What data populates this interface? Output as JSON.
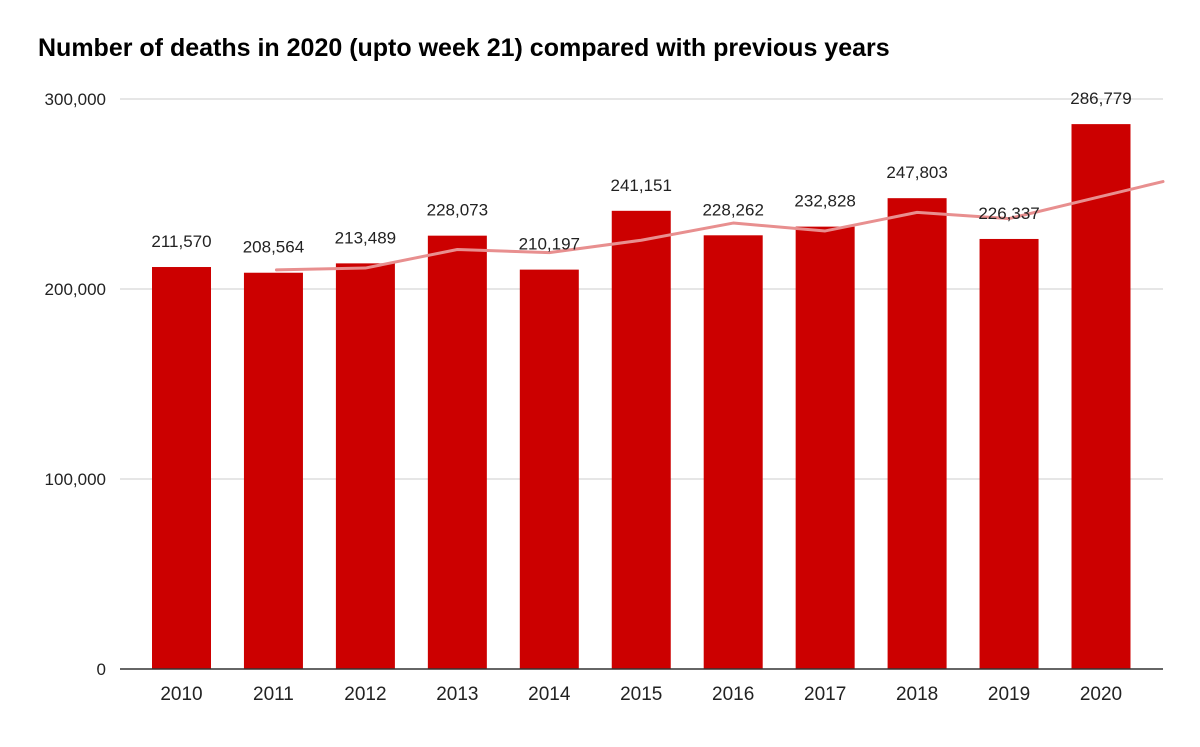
{
  "chart_data": {
    "type": "bar",
    "title": "Number of deaths in 2020 (upto week 21) compared with previous years",
    "categories": [
      "2010",
      "2011",
      "2012",
      "2013",
      "2014",
      "2015",
      "2016",
      "2017",
      "2018",
      "2019",
      "2020"
    ],
    "series": [
      {
        "values": [
          211570,
          208564,
          213489,
          228073,
          210197,
          241151,
          228262,
          232828,
          247803,
          226337,
          286779
        ]
      }
    ],
    "data_labels": [
      "211,570",
      "208,564",
      "213,489",
      "228,073",
      "210,197",
      "241,151",
      "228,262",
      "232,828",
      "247,803",
      "226,337",
      "286,779"
    ],
    "trendline": {
      "type": "line",
      "values": [
        210067,
        211027,
        220781,
        219135,
        225674,
        234707,
        230545,
        240316,
        237070,
        256558
      ]
    },
    "y_ticks": [
      {
        "value": 0,
        "label": "0"
      },
      {
        "value": 100000,
        "label": "100,000"
      },
      {
        "value": 200000,
        "label": "200,000"
      },
      {
        "value": 300000,
        "label": "300,000"
      }
    ],
    "ylim": [
      0,
      300000
    ],
    "grid": true,
    "legend": "none",
    "xlabel": "",
    "ylabel": "",
    "colors": {
      "bar": "#cc0000",
      "trendline": "#e88f8f",
      "grid": "#cccccc",
      "axis": "#333333"
    }
  }
}
